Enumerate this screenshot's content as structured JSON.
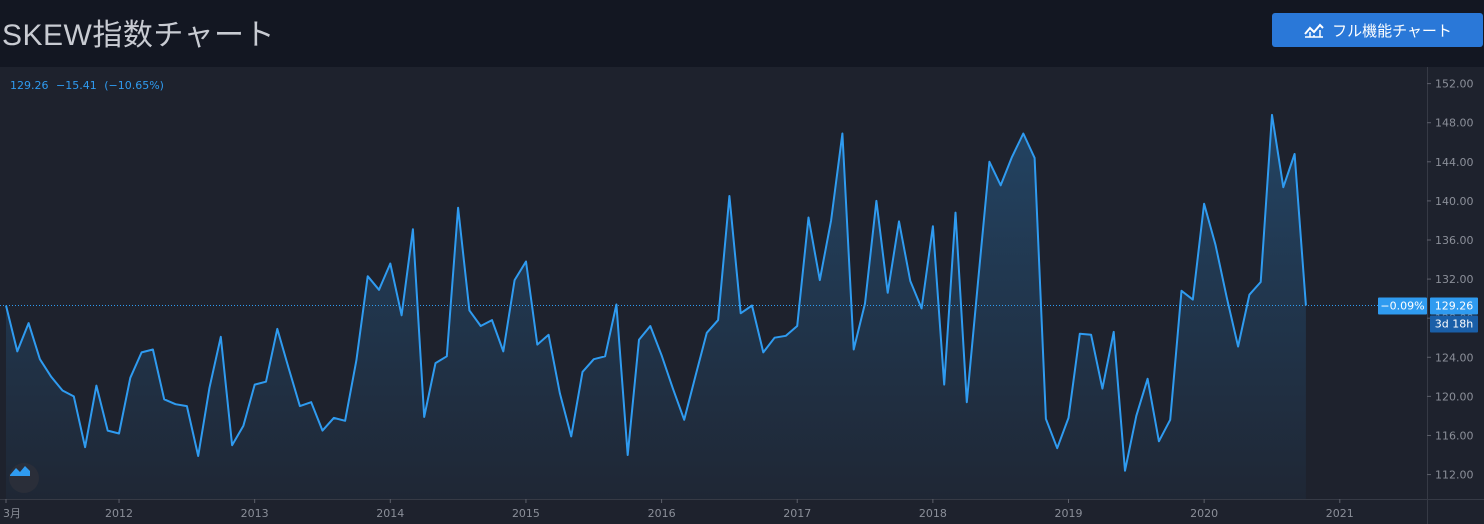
{
  "header": {
    "title": "SKEW指数チャート",
    "full_chart_button": "フル機能チャート",
    "full_chart_icon": "line-chart-icon"
  },
  "legend": {
    "last": "129.26",
    "change": "−15.41",
    "change_pct": "(−10.65%)"
  },
  "price_label": {
    "pct": "−0.09%",
    "value": "129.26",
    "countdown": "3d 18h"
  },
  "colors": {
    "background": "#131722",
    "pane": "#1e222d",
    "line": "#2f9bf0",
    "button": "#2a78d8",
    "axis_text": "#8b8f99"
  },
  "chart_data": {
    "type": "area",
    "title": "SKEW指数チャート",
    "xlabel": "",
    "ylabel": "",
    "x_tick_labels": [
      "3月",
      "2012",
      "2013",
      "2014",
      "2015",
      "2016",
      "2017",
      "2018",
      "2019",
      "2020",
      "2021"
    ],
    "y_tick_labels": [
      "112.00",
      "116.00",
      "120.00",
      "124.00",
      "128.00",
      "132.00",
      "136.00",
      "140.00",
      "144.00",
      "148.00",
      "152.00"
    ],
    "ylim": [
      109.5,
      153.7
    ],
    "xlim": [
      "2011-03",
      "2021-05"
    ],
    "grid": false,
    "series": [
      {
        "values": [
          [
            "2011-03",
            129.3
          ],
          [
            "2011-04",
            124.6
          ],
          [
            "2011-05",
            127.5
          ],
          [
            "2011-06",
            123.8
          ],
          [
            "2011-07",
            122.0
          ],
          [
            "2011-08",
            120.6
          ],
          [
            "2011-09",
            120.0
          ],
          [
            "2011-10",
            114.8
          ],
          [
            "2011-11",
            121.1
          ],
          [
            "2011-12",
            116.5
          ],
          [
            "2012-01",
            116.2
          ],
          [
            "2012-02",
            121.9
          ],
          [
            "2012-03",
            124.5
          ],
          [
            "2012-04",
            124.8
          ],
          [
            "2012-05",
            119.7
          ],
          [
            "2012-06",
            119.2
          ],
          [
            "2012-07",
            119.0
          ],
          [
            "2012-08",
            113.9
          ],
          [
            "2012-09",
            120.9
          ],
          [
            "2012-10",
            126.1
          ],
          [
            "2012-11",
            115.0
          ],
          [
            "2012-12",
            117.0
          ],
          [
            "2013-01",
            121.2
          ],
          [
            "2013-02",
            121.5
          ],
          [
            "2013-03",
            126.9
          ],
          [
            "2013-04",
            122.9
          ],
          [
            "2013-05",
            119.0
          ],
          [
            "2013-06",
            119.4
          ],
          [
            "2013-07",
            116.5
          ],
          [
            "2013-08",
            117.8
          ],
          [
            "2013-09",
            117.5
          ],
          [
            "2013-10",
            123.7
          ],
          [
            "2013-11",
            132.3
          ],
          [
            "2013-12",
            130.9
          ],
          [
            "2014-01",
            133.6
          ],
          [
            "2014-02",
            128.3
          ],
          [
            "2014-03",
            137.1
          ],
          [
            "2014-04",
            117.9
          ],
          [
            "2014-05",
            123.4
          ],
          [
            "2014-06",
            124.1
          ],
          [
            "2014-07",
            139.3
          ],
          [
            "2014-08",
            128.8
          ],
          [
            "2014-09",
            127.2
          ],
          [
            "2014-10",
            127.8
          ],
          [
            "2014-11",
            124.6
          ],
          [
            "2014-12",
            131.9
          ],
          [
            "2015-01",
            133.8
          ],
          [
            "2015-02",
            125.3
          ],
          [
            "2015-03",
            126.3
          ],
          [
            "2015-04",
            120.3
          ],
          [
            "2015-05",
            115.9
          ],
          [
            "2015-06",
            122.5
          ],
          [
            "2015-07",
            123.8
          ],
          [
            "2015-08",
            124.1
          ],
          [
            "2015-09",
            129.4
          ],
          [
            "2015-10",
            114.0
          ],
          [
            "2015-11",
            125.8
          ],
          [
            "2015-12",
            127.2
          ],
          [
            "2016-01",
            124.2
          ],
          [
            "2016-02",
            120.8
          ],
          [
            "2016-03",
            117.6
          ],
          [
            "2016-04",
            122.1
          ],
          [
            "2016-05",
            126.5
          ],
          [
            "2016-06",
            127.8
          ],
          [
            "2016-07",
            140.5
          ],
          [
            "2016-08",
            128.5
          ],
          [
            "2016-09",
            129.3
          ],
          [
            "2016-10",
            124.5
          ],
          [
            "2016-11",
            126.0
          ],
          [
            "2016-12",
            126.2
          ],
          [
            "2017-01",
            127.2
          ],
          [
            "2017-02",
            138.3
          ],
          [
            "2017-03",
            131.9
          ],
          [
            "2017-04",
            138.0
          ],
          [
            "2017-05",
            146.9
          ],
          [
            "2017-06",
            124.8
          ],
          [
            "2017-07",
            129.5
          ],
          [
            "2017-08",
            140.0
          ],
          [
            "2017-09",
            130.6
          ],
          [
            "2017-10",
            137.9
          ],
          [
            "2017-11",
            131.8
          ],
          [
            "2017-12",
            129.0
          ],
          [
            "2018-01",
            137.4
          ],
          [
            "2018-02",
            121.2
          ],
          [
            "2018-03",
            138.8
          ],
          [
            "2018-04",
            119.4
          ],
          [
            "2018-05",
            131.8
          ],
          [
            "2018-06",
            144.0
          ],
          [
            "2018-07",
            141.6
          ],
          [
            "2018-08",
            144.5
          ],
          [
            "2018-09",
            146.9
          ],
          [
            "2018-10",
            144.4
          ],
          [
            "2018-11",
            117.7
          ],
          [
            "2018-12",
            114.7
          ],
          [
            "2019-01",
            117.8
          ],
          [
            "2019-02",
            126.4
          ],
          [
            "2019-03",
            126.3
          ],
          [
            "2019-04",
            120.8
          ],
          [
            "2019-05",
            126.6
          ],
          [
            "2019-06",
            112.4
          ],
          [
            "2019-07",
            118.0
          ],
          [
            "2019-08",
            121.8
          ],
          [
            "2019-09",
            115.4
          ],
          [
            "2019-10",
            117.6
          ],
          [
            "2019-11",
            130.8
          ],
          [
            "2019-12",
            129.9
          ],
          [
            "2020-01",
            139.7
          ],
          [
            "2020-02",
            135.5
          ],
          [
            "2020-03",
            130.1
          ],
          [
            "2020-04",
            125.1
          ],
          [
            "2020-05",
            130.4
          ],
          [
            "2020-06",
            131.7
          ],
          [
            "2020-07",
            148.8
          ],
          [
            "2020-08",
            141.4
          ],
          [
            "2020-09",
            144.8
          ],
          [
            "2020-10",
            129.3
          ]
        ]
      }
    ]
  }
}
